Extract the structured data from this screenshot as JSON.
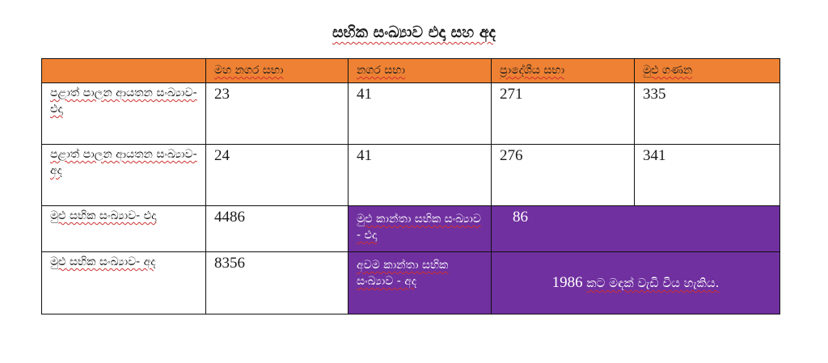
{
  "title": "සභික සංඛ්‍යාව එදා සහ අද",
  "table": {
    "headers": [
      "",
      "මහ නගර සභා",
      "නගර සභා",
      "ප්‍රාදේශීය සභා",
      "මුළු ගණන"
    ],
    "rows": [
      {
        "label": "පළාත් පාලන ආයතන සංඛ්‍යාව- එදා",
        "values": [
          "23",
          "41",
          "271",
          "335"
        ]
      },
      {
        "label": "පළාත් පාලන ආයතන සංඛ්‍යාව- අද",
        "values": [
          "24",
          "41",
          "276",
          "341"
        ]
      },
      {
        "label": "මුළු සභික සංඛ්‍යාව- එදා",
        "value": "4486",
        "sublabel": "මුළු කාන්තා සභික සංඛ්‍යාව - එදා",
        "subvalue": "86"
      },
      {
        "label": "මුළු සභික සංඛ්‍යාව- අද",
        "value": "8356",
        "sublabel": "අවම කාන්තා සභික සංඛ්‍යාව - අද",
        "note_number": "1986",
        "note_text": "කට මඳක් වැඩි විය හැකිය."
      }
    ]
  },
  "colors": {
    "header_bg": "#ee8133",
    "highlight_bg": "#7030a0"
  }
}
